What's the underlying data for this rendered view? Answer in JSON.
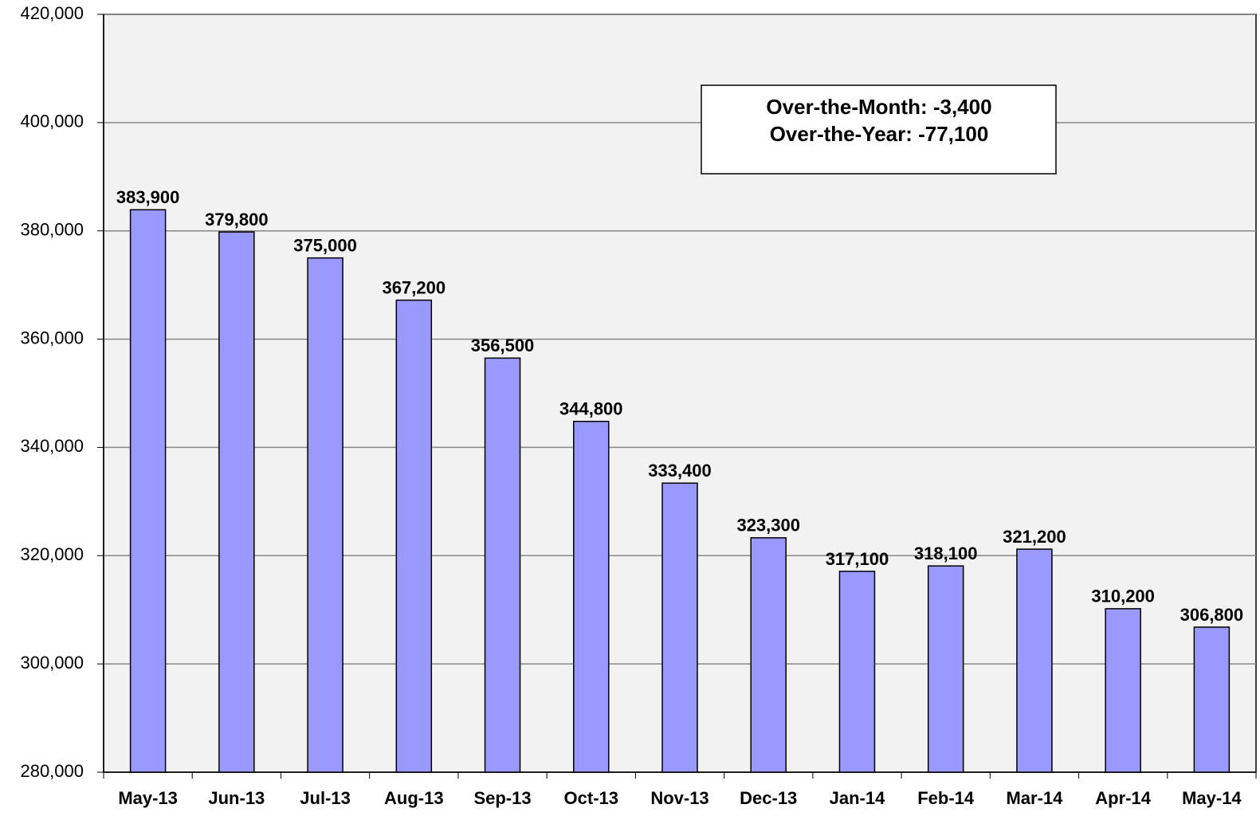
{
  "chart_data": {
    "type": "bar",
    "categories": [
      "May-13",
      "Jun-13",
      "Jul-13",
      "Aug-13",
      "Sep-13",
      "Oct-13",
      "Nov-13",
      "Dec-13",
      "Jan-14",
      "Feb-14",
      "Mar-14",
      "Apr-14",
      "May-14"
    ],
    "values": [
      383900,
      379800,
      375000,
      367200,
      356500,
      344800,
      333400,
      323300,
      317100,
      318100,
      321200,
      310200,
      306800
    ],
    "value_labels": [
      "383,900",
      "379,800",
      "375,000",
      "367,200",
      "356,500",
      "344,800",
      "333,400",
      "323,300",
      "317,100",
      "318,100",
      "321,200",
      "310,200",
      "306,800"
    ],
    "color": "#9999ff",
    "ylim": [
      280000,
      420000
    ],
    "yticks": [
      {
        "value": 280000,
        "label": "280,000"
      },
      {
        "value": 300000,
        "label": "300,000"
      },
      {
        "value": 320000,
        "label": "320,000"
      },
      {
        "value": 340000,
        "label": "340,000"
      },
      {
        "value": 360000,
        "label": "360,000"
      },
      {
        "value": 380000,
        "label": "380,000"
      },
      {
        "value": 400000,
        "label": "400,000"
      },
      {
        "value": 420000,
        "label": "420,000"
      }
    ],
    "grid": true,
    "annotations": [
      "Over-the-Month: -3,400",
      "Over-the-Year: -77,100"
    ]
  }
}
